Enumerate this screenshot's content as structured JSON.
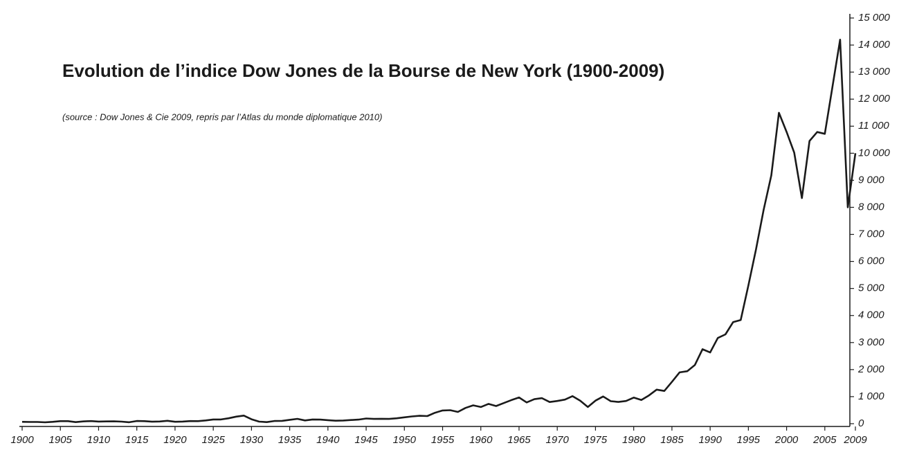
{
  "chart_data": {
    "type": "line",
    "title": "Evolution de l’indice Dow Jones de la Bourse de New York (1900-2009)",
    "subtitle": "(source : Dow Jones & Cie 2009, repris par l’Atlas du monde diplomatique 2010)",
    "color": "#1a1a1a",
    "x": [
      1900,
      1901,
      1902,
      1903,
      1904,
      1905,
      1906,
      1907,
      1908,
      1909,
      1910,
      1911,
      1912,
      1913,
      1914,
      1915,
      1916,
      1917,
      1918,
      1919,
      1920,
      1921,
      1922,
      1923,
      1924,
      1925,
      1926,
      1927,
      1928,
      1929,
      1930,
      1931,
      1932,
      1933,
      1934,
      1935,
      1936,
      1937,
      1938,
      1939,
      1940,
      1941,
      1942,
      1943,
      1944,
      1945,
      1946,
      1947,
      1948,
      1949,
      1950,
      1951,
      1952,
      1953,
      1954,
      1955,
      1956,
      1957,
      1958,
      1959,
      1960,
      1961,
      1962,
      1963,
      1964,
      1965,
      1966,
      1967,
      1968,
      1969,
      1970,
      1971,
      1972,
      1973,
      1974,
      1975,
      1976,
      1977,
      1978,
      1979,
      1980,
      1981,
      1982,
      1983,
      1984,
      1985,
      1986,
      1987,
      1988,
      1989,
      1990,
      1991,
      1992,
      1993,
      1994,
      1995,
      1996,
      1997,
      1998,
      1999,
      2000,
      2001,
      2002,
      2003,
      2004,
      2005,
      2006,
      2007,
      2008,
      2009
    ],
    "values": [
      70,
      65,
      65,
      50,
      70,
      95,
      95,
      60,
      85,
      98,
      80,
      85,
      88,
      78,
      55,
      99,
      95,
      75,
      82,
      107,
      72,
      80,
      98,
      95,
      120,
      156,
      157,
      200,
      260,
      300,
      165,
      78,
      60,
      99,
      104,
      144,
      180,
      121,
      155,
      150,
      131,
      111,
      119,
      136,
      152,
      193,
      177,
      181,
      177,
      200,
      235,
      269,
      292,
      281,
      404,
      488,
      500,
      436,
      584,
      679,
      616,
      731,
      652,
      763,
      874,
      969,
      786,
      905,
      944,
      800,
      839,
      890,
      1020,
      851,
      616,
      852,
      1005,
      831,
      805,
      839,
      964,
      875,
      1047,
      1259,
      1212,
      1547,
      1896,
      1939,
      2169,
      2753,
      2634,
      3169,
      3301,
      3754,
      3834,
      5117,
      6448,
      7908,
      9181,
      11497,
      10787,
      10022,
      8342,
      10454,
      10783,
      10718,
      12463,
      14200,
      8000,
      10000
    ],
    "xlim": [
      1900,
      2009
    ],
    "xticks": [
      1900,
      1905,
      1910,
      1915,
      1920,
      1925,
      1930,
      1935,
      1940,
      1945,
      1950,
      1955,
      1960,
      1965,
      1970,
      1975,
      1980,
      1985,
      1990,
      1995,
      2000,
      2005,
      2009
    ],
    "ylim": [
      0,
      15000
    ],
    "yticks": [
      0,
      {
        "value": 1000,
        "label": "1 000"
      },
      {
        "value": 2000,
        "label": "2 000"
      },
      {
        "value": 3000,
        "label": "3 000"
      },
      {
        "value": 4000,
        "label": "4 000"
      },
      {
        "value": 5000,
        "label": "5 000"
      },
      {
        "value": 6000,
        "label": "6 000"
      },
      {
        "value": 7000,
        "label": "7 000"
      },
      {
        "value": 8000,
        "label": "8 000"
      },
      {
        "value": 9000,
        "label": "9 000"
      },
      {
        "value": 10000,
        "label": "10 000"
      },
      {
        "value": 11000,
        "label": "11 000"
      },
      {
        "value": 12000,
        "label": "12 000"
      },
      {
        "value": 13000,
        "label": "13 000"
      },
      {
        "value": 14000,
        "label": "14 000"
      },
      {
        "value": 15000,
        "label": "15 000"
      }
    ]
  }
}
